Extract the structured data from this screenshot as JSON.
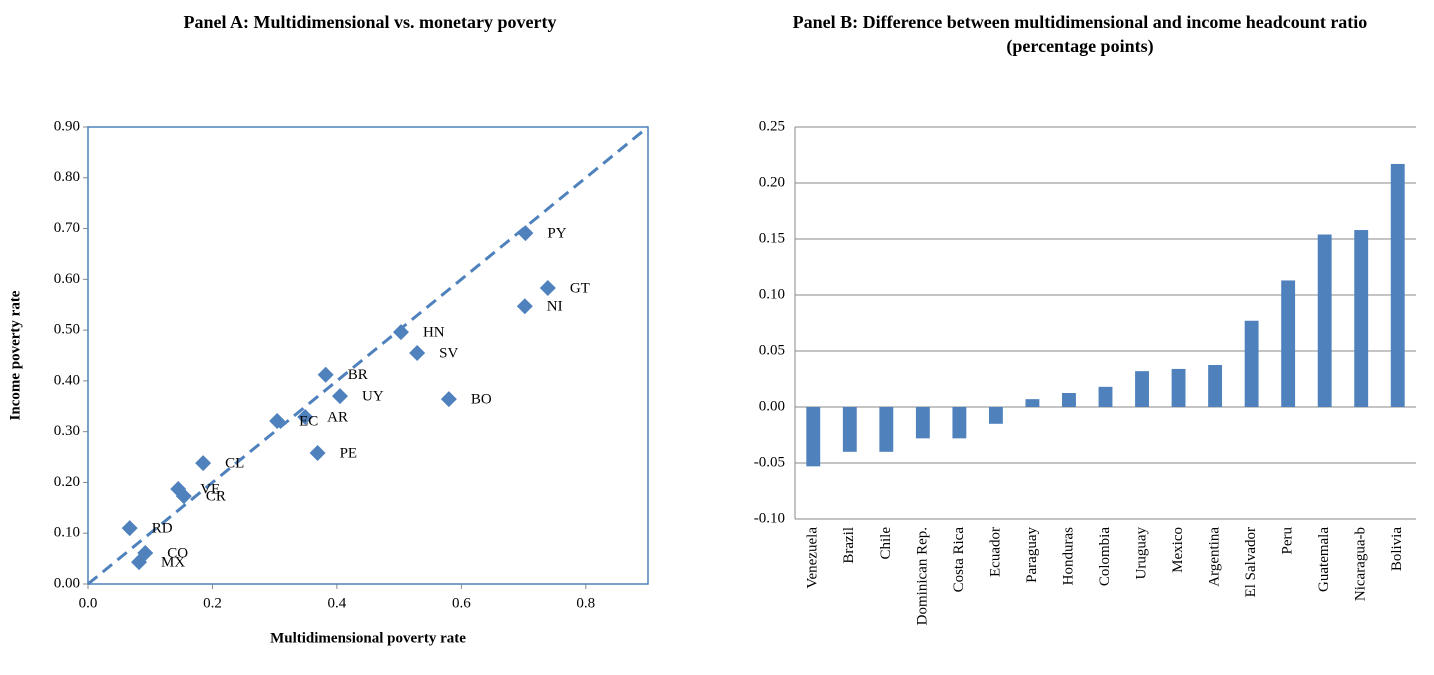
{
  "chart_data": [
    {
      "type": "scatter",
      "title": "Panel A: Multidimensional vs. monetary poverty",
      "x_label": "Multidimensional poverty rate",
      "y_label": "Income poverty rate",
      "color": "#4f81bd",
      "labels": [
        "PY",
        "GT",
        "NI",
        "HN",
        "SV",
        "BR",
        "UY",
        "BO",
        "AR",
        "EC",
        "PE",
        "CL",
        "VE",
        "CR",
        "RD",
        "CO",
        "MX"
      ],
      "x": [
        0.703,
        0.739,
        0.702,
        0.503,
        0.529,
        0.382,
        0.405,
        0.58,
        0.349,
        0.304,
        0.369,
        0.185,
        0.145,
        0.154,
        0.067,
        0.092,
        0.082
      ],
      "values": [
        0.691,
        0.583,
        0.547,
        0.496,
        0.455,
        0.412,
        0.37,
        0.364,
        0.329,
        0.321,
        0.258,
        0.238,
        0.187,
        0.173,
        0.11,
        0.061,
        0.043
      ],
      "xlim": [
        0,
        0.9
      ],
      "ylim": [
        0,
        0.9
      ],
      "xticks": [
        {
          "value": 0,
          "label": "0.0"
        },
        {
          "value": 0.2,
          "label": "0.2"
        },
        {
          "value": 0.4,
          "label": "0.4"
        },
        {
          "value": 0.6,
          "label": "0.6"
        },
        {
          "value": 0.8,
          "label": "0.8"
        }
      ],
      "yticks": [
        {
          "value": 0,
          "label": "0.00"
        },
        {
          "value": 0.1,
          "label": "0.10"
        },
        {
          "value": 0.2,
          "label": "0.20"
        },
        {
          "value": 0.3,
          "label": "0.30"
        },
        {
          "value": 0.4,
          "label": "0.40"
        },
        {
          "value": 0.5,
          "label": "0.50"
        },
        {
          "value": 0.6,
          "label": "0.60"
        },
        {
          "value": 0.7,
          "label": "0.70"
        },
        {
          "value": 0.8,
          "label": "0.80"
        },
        {
          "value": 0.9,
          "label": "0.90"
        }
      ]
    },
    {
      "type": "bar",
      "title": "Panel B: Difference between multidimensional and income headcount ratio",
      "subtitle": "(percentage points)",
      "color": "#4f81bd",
      "grid": true,
      "categories": [
        "Venezuela",
        "Brazil",
        "Chile",
        "Dominican Rep.",
        "Costa Rica",
        "Ecuador",
        "Paraguay",
        "Honduras",
        "Colombia",
        "Uruguay",
        "Mexico",
        "Argentina",
        "El Salvador",
        "Peru",
        "Guatemala",
        "Nicaragua-b",
        "Bolivia"
      ],
      "values": [
        -0.053,
        -0.04,
        -0.04,
        -0.028,
        -0.028,
        -0.015,
        0.007,
        0.0125,
        0.018,
        0.032,
        0.034,
        0.0375,
        0.077,
        0.113,
        0.154,
        0.158,
        0.217
      ],
      "ylim": [
        -0.1,
        0.25
      ],
      "yticks": [
        {
          "value": -0.1,
          "label": "-0.10"
        },
        {
          "value": -0.05,
          "label": "-0.05"
        },
        {
          "value": 0,
          "label": "0.00"
        },
        {
          "value": 0.05,
          "label": "0.05"
        },
        {
          "value": 0.1,
          "label": "0.10"
        },
        {
          "value": 0.15,
          "label": "0.15"
        },
        {
          "value": 0.2,
          "label": "0.20"
        },
        {
          "value": 0.25,
          "label": "0.25"
        }
      ]
    }
  ]
}
